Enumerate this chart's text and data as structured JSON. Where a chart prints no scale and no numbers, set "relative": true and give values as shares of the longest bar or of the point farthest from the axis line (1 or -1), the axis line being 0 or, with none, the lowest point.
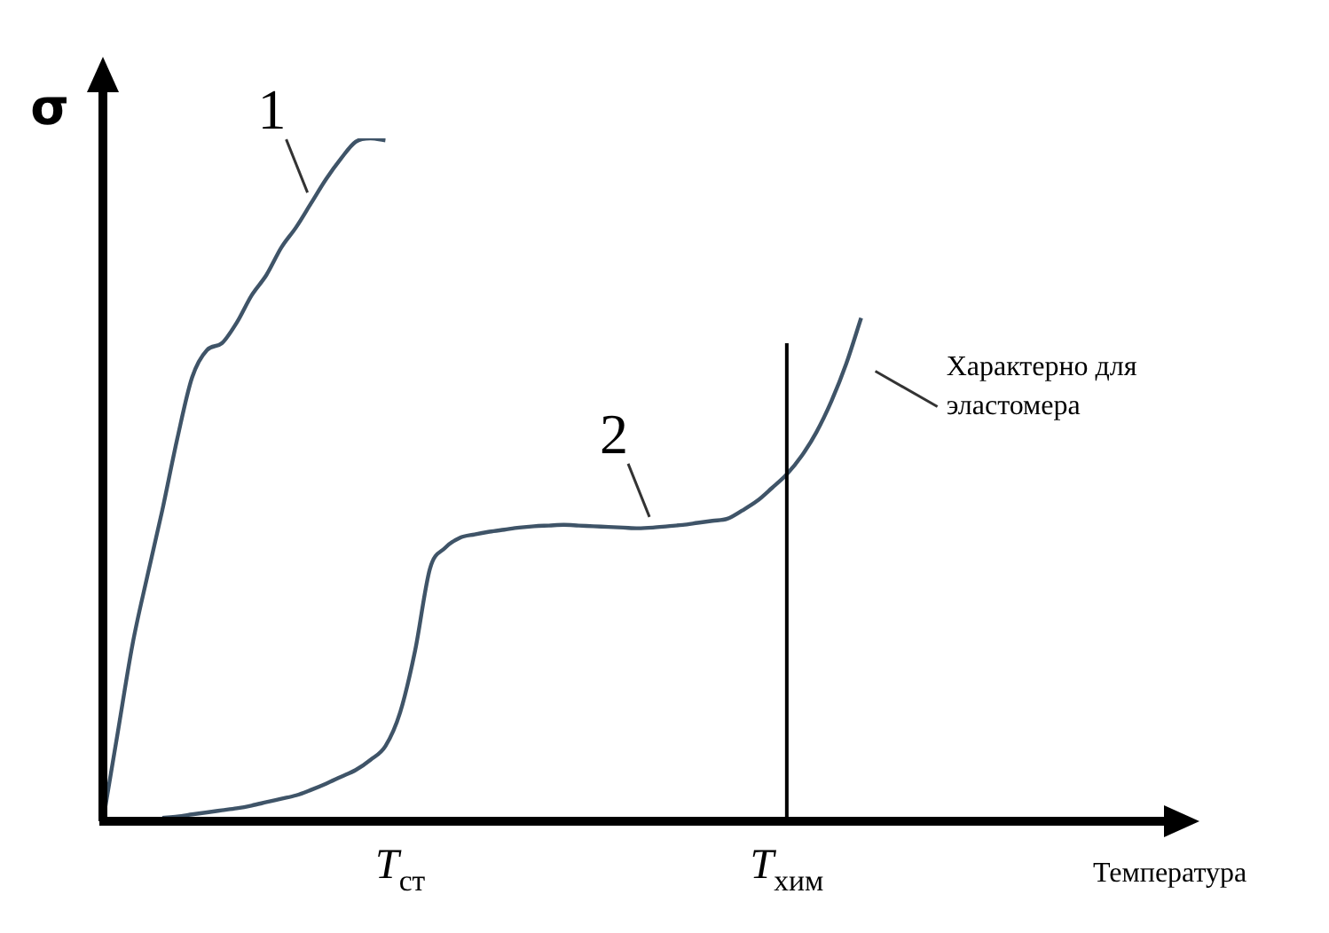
{
  "chart_data": {
    "type": "line",
    "relative": true,
    "ylabel": "σ",
    "xlabel": "Температура",
    "categories": [
      null,
      null,
      null,
      null,
      null,
      null,
      null,
      null,
      null,
      null,
      null,
      null,
      null,
      null,
      null,
      null,
      null,
      null,
      null,
      null,
      "T$_{ст}$",
      null,
      null,
      null,
      null,
      null,
      null,
      null,
      null,
      null,
      null,
      null,
      null,
      null,
      null,
      null,
      null,
      null,
      null,
      null,
      null,
      null,
      null,
      null,
      null,
      null,
      "T$_{хим}$",
      null,
      null,
      null,
      null,
      null,
      null,
      null,
      null,
      null,
      null,
      null,
      null,
      null,
      null,
      null,
      null,
      null,
      null,
      null,
      null
    ],
    "ref_lines": [
      {
        "axis": "x",
        "value": "T$_{хим}$",
        "color": "#000000"
      }
    ],
    "series": [
      {
        "name": "1",
        "color": "#3f5468",
        "values": [
          0,
          0.13,
          0.26,
          0.36,
          0.456,
          0.56,
          0.65,
          0.69,
          0.7,
          0.73,
          0.77,
          0.8,
          0.84,
          0.87,
          0.905,
          0.94,
          0.97,
          0.995,
          1,
          0.997,
          null,
          null,
          null,
          null,
          null,
          null,
          null,
          null,
          null,
          null,
          null,
          null,
          null,
          null,
          null,
          null,
          null,
          null,
          null,
          null,
          null,
          null,
          null,
          null,
          null,
          null,
          null,
          null,
          null,
          null,
          null,
          null,
          null,
          null,
          null,
          null,
          null,
          null,
          null,
          null,
          null,
          null,
          null,
          null,
          null,
          null,
          null
        ]
      },
      {
        "name": "2",
        "color": "#3f5468",
        "values": [
          null,
          null,
          null,
          null,
          0.005,
          0.007,
          0.01,
          0.013,
          0.016,
          0.019,
          0.023,
          0.028,
          0.033,
          0.038,
          0.046,
          0.055,
          0.065,
          0.075,
          0.09,
          0.11,
          0.16,
          0.25,
          0.37,
          0.4,
          0.415,
          0.42,
          0.424,
          0.427,
          0.43,
          0.432,
          0.433,
          0.434,
          0.433,
          0.432,
          0.431,
          0.43,
          0.429,
          0.43,
          0.432,
          0.434,
          0.437,
          0.44,
          0.443,
          0.455,
          0.469,
          0.488,
          0.508,
          0.535,
          0.57,
          0.615,
          0.67,
          0.737,
          null,
          null,
          null,
          null,
          null,
          null,
          null,
          null,
          null,
          null,
          null,
          null,
          null,
          null,
          null
        ]
      }
    ],
    "annotations": [
      "Характерно для эластомера"
    ],
    "legend": false,
    "marker": "none",
    "line_style": "solid"
  }
}
